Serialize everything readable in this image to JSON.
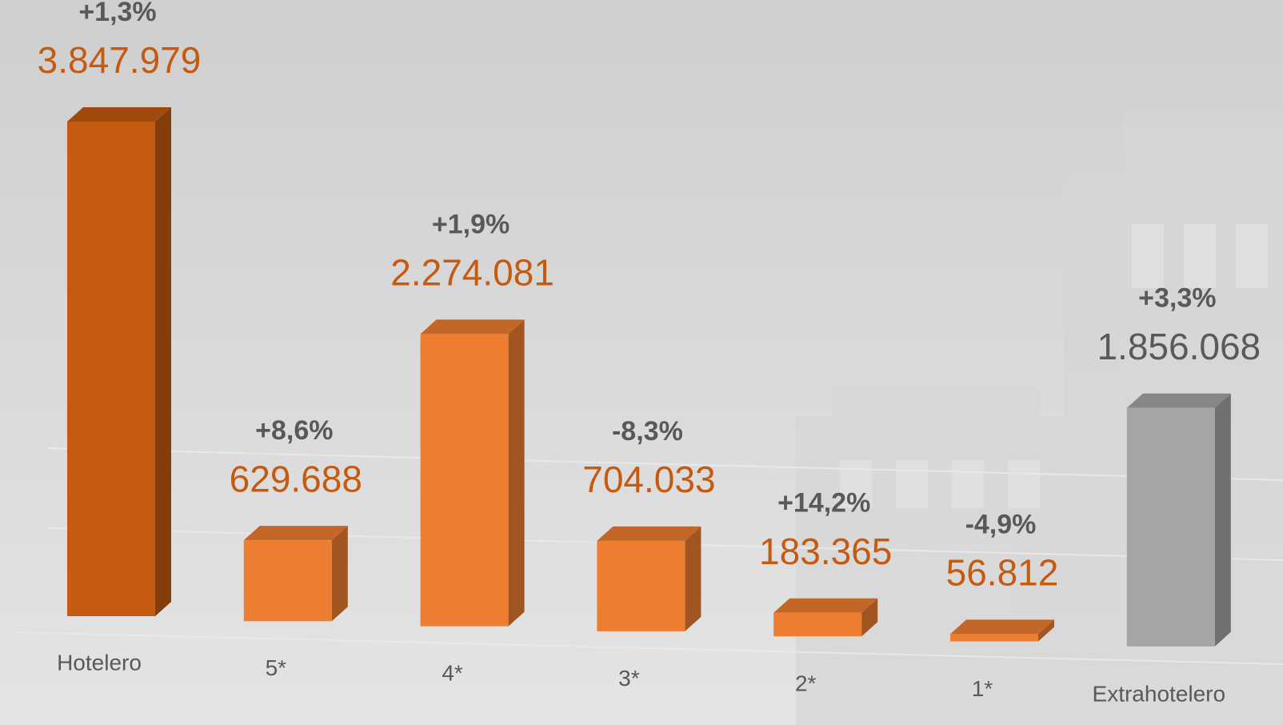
{
  "chart_data": {
    "type": "bar3d",
    "categories": [
      "Hotelero",
      "5*",
      "4*",
      "3*",
      "2*",
      "1*",
      "Extrahotelero"
    ],
    "values": [
      3847979,
      629688,
      2274081,
      704033,
      183365,
      56812,
      1856068
    ],
    "value_labels": [
      "3.847.979",
      "629.688",
      "2.274.081",
      "704.033",
      "183.365",
      "56.812",
      "1.856.068"
    ],
    "changes": [
      "+1,3%",
      "+8,6%",
      "+1,9%",
      "-8,3%",
      "+14,2%",
      "-4,9%",
      "+3,3%"
    ],
    "colors": [
      "#c55a11",
      "#ed7d31",
      "#ed7d31",
      "#ed7d31",
      "#ed7d31",
      "#ed7d31",
      "#a5a5a5"
    ],
    "value_label_colors": [
      "#c55a11",
      "#c55a11",
      "#c55a11",
      "#c55a11",
      "#c55a11",
      "#c55a11",
      "#595959"
    ]
  }
}
